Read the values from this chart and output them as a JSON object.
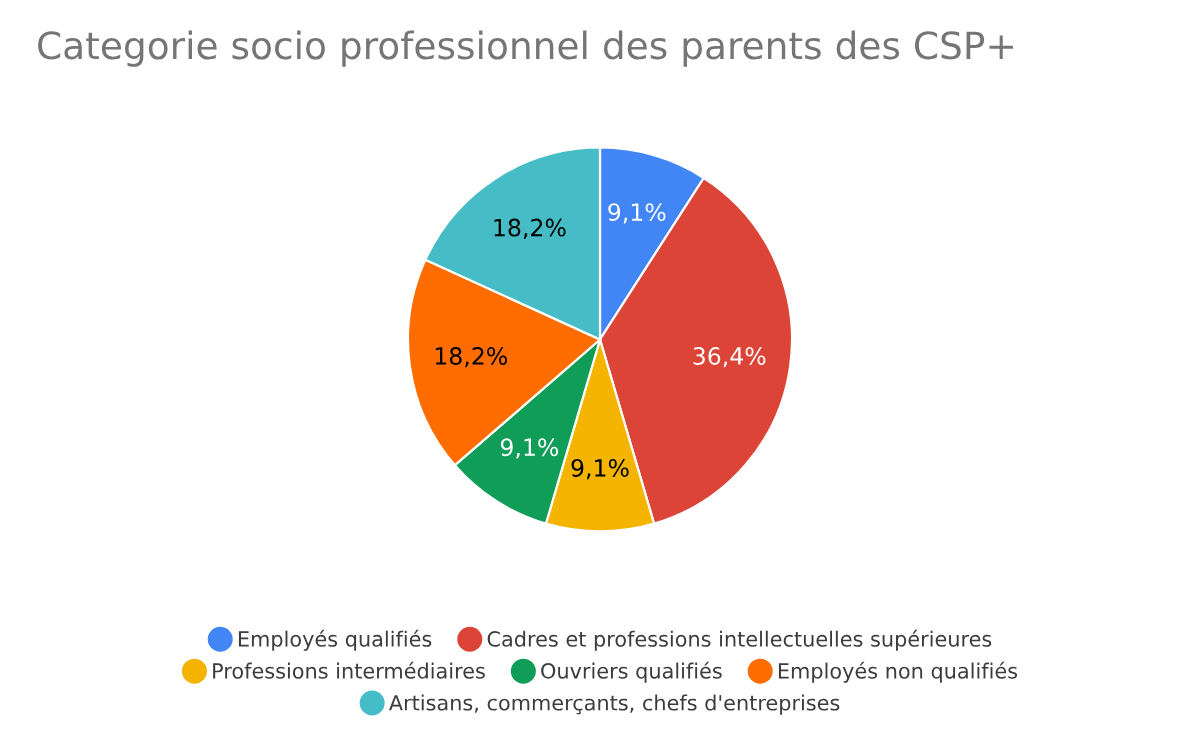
{
  "chart_data": {
    "type": "pie",
    "title": "Categorie socio professionnel des parents des CSP+",
    "categories": [
      "Employés qualifiés",
      "Cadres et professions intellectuelles supérieures",
      "Professions intermédiaires",
      "Ouvriers qualifiés",
      "Employés non qualifiés",
      "Artisans, commerçants, chefs d'entreprises"
    ],
    "values": [
      9.1,
      36.4,
      9.1,
      9.1,
      18.2,
      18.2
    ],
    "value_labels": [
      "9,1%",
      "36,4%",
      "9,1%",
      "9,1%",
      "18,2%",
      "18,2%"
    ],
    "colors": [
      "#4285f4",
      "#db4437",
      "#f4b400",
      "#0f9d58",
      "#ff6d00",
      "#46bdc6"
    ],
    "legend": "bottom"
  }
}
